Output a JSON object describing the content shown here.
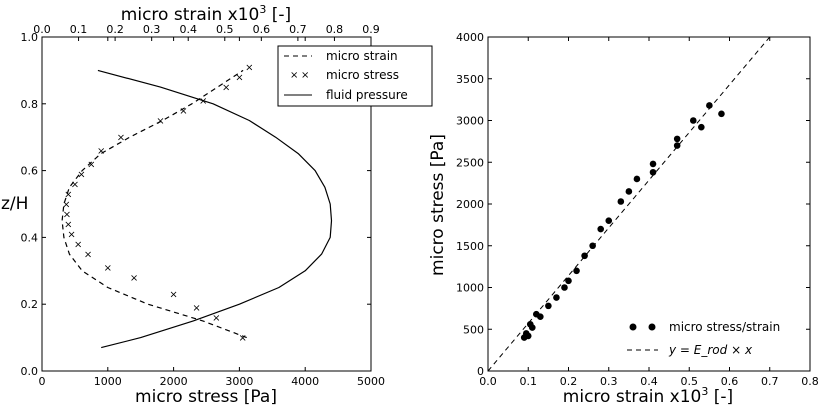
{
  "chart_data": [
    {
      "type": "line",
      "xlabel": "micro stress [Pa]",
      "x2label": "micro strain x10",
      "x2label_sup": "3",
      "x2label_unit": "  [-]",
      "ylabel": "z/H",
      "xlim": [
        0,
        5000
      ],
      "x2lim": [
        0,
        0.9
      ],
      "ylim": [
        0,
        1.0
      ],
      "xticks": [
        "0",
        "1000",
        "2000",
        "3000",
        "4000",
        "5000"
      ],
      "x2ticks": [
        "0.0",
        "0.1",
        "0.2",
        "0.3",
        "0.4",
        "0.5",
        "0.6",
        "0.7",
        "0.8",
        "0.9"
      ],
      "yticks": [
        "0.0",
        "0.2",
        "0.4",
        "0.6",
        "0.8",
        "1.0"
      ],
      "legend": {
        "position": "top-right",
        "entries": [
          "micro strain",
          "micro stress",
          "fluid pressure"
        ]
      },
      "series": [
        {
          "name": "micro strain",
          "style": "dashed",
          "axis": "top",
          "z": [
            0.1,
            0.15,
            0.2,
            0.25,
            0.3,
            0.35,
            0.4,
            0.45,
            0.5,
            0.55,
            0.6,
            0.65,
            0.7,
            0.75,
            0.8,
            0.85,
            0.9
          ],
          "values": [
            0.56,
            0.44,
            0.29,
            0.18,
            0.11,
            0.075,
            0.06,
            0.055,
            0.06,
            0.075,
            0.11,
            0.16,
            0.24,
            0.33,
            0.41,
            0.48,
            0.55
          ]
        },
        {
          "name": "micro stress",
          "style": "x-markers",
          "axis": "bottom",
          "z": [
            0.1,
            0.16,
            0.19,
            0.23,
            0.28,
            0.31,
            0.35,
            0.38,
            0.41,
            0.44,
            0.47,
            0.5,
            0.53,
            0.56,
            0.59,
            0.62,
            0.66,
            0.7,
            0.75,
            0.78,
            0.81,
            0.85,
            0.88,
            0.91
          ],
          "values": [
            3050,
            2650,
            2350,
            2000,
            1400,
            1000,
            700,
            550,
            450,
            400,
            380,
            370,
            400,
            500,
            600,
            750,
            900,
            1200,
            1800,
            2150,
            2450,
            2800,
            3000,
            3150
          ]
        },
        {
          "name": "fluid pressure",
          "style": "solid",
          "axis": "bottom",
          "z": [
            0.07,
            0.1,
            0.15,
            0.2,
            0.25,
            0.3,
            0.35,
            0.4,
            0.45,
            0.5,
            0.55,
            0.6,
            0.65,
            0.7,
            0.75,
            0.8,
            0.85,
            0.9
          ],
          "values": [
            900,
            1500,
            2300,
            3000,
            3600,
            4000,
            4250,
            4380,
            4400,
            4380,
            4300,
            4150,
            3900,
            3550,
            3150,
            2600,
            1800,
            850
          ]
        }
      ]
    },
    {
      "type": "scatter",
      "xlabel": "micro strain x10",
      "xlabel_sup": "3",
      "xlabel_unit": " [-]",
      "ylabel": "micro stress [Pa]",
      "xlim": [
        0,
        0.8
      ],
      "ylim": [
        0,
        4000
      ],
      "xticks": [
        "0.0",
        "0.1",
        "0.2",
        "0.3",
        "0.4",
        "0.5",
        "0.6",
        "0.7",
        "0.8"
      ],
      "yticks": [
        "0",
        "500",
        "1000",
        "1500",
        "2000",
        "2500",
        "3000",
        "3500",
        "4000"
      ],
      "legend": {
        "position": "bottom-right",
        "scatter_label": "micro stress/strain",
        "fit_label": "y = E_rod × x"
      },
      "fit": {
        "name": "y = E_rod x",
        "slope": 5714,
        "x": [
          0.0,
          0.7
        ],
        "style": "dashed"
      },
      "points": {
        "name": "micro stress/strain",
        "x": [
          0.09,
          0.095,
          0.1,
          0.105,
          0.11,
          0.12,
          0.13,
          0.15,
          0.17,
          0.19,
          0.2,
          0.22,
          0.24,
          0.26,
          0.28,
          0.3,
          0.33,
          0.35,
          0.37,
          0.41,
          0.41,
          0.47,
          0.47,
          0.51,
          0.53,
          0.55,
          0.58
        ],
        "y": [
          400,
          450,
          420,
          560,
          520,
          680,
          650,
          780,
          880,
          1000,
          1080,
          1200,
          1380,
          1500,
          1700,
          1800,
          2030,
          2150,
          2300,
          2380,
          2480,
          2700,
          2780,
          3000,
          2920,
          3180,
          3080
        ]
      }
    }
  ]
}
